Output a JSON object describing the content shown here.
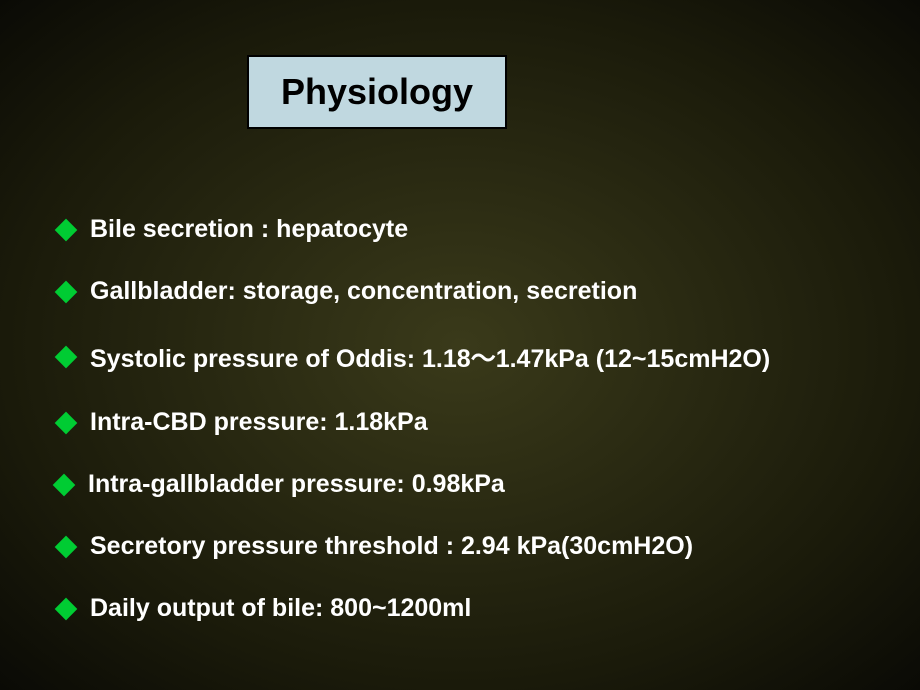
{
  "title": {
    "text": "Physiology",
    "background_color": "#c0d8e0",
    "border_color": "#000000",
    "text_color": "#000000",
    "fontsize": 36,
    "fontweight": "bold"
  },
  "bullets": {
    "marker_color": "#00cc33",
    "marker_shape": "diamond",
    "text_color": "#ffffff",
    "fontsize": 25,
    "fontweight": "bold",
    "items": [
      "Bile secretion : hepatocyte",
      "Gallbladder: storage, concentration, secretion",
      "Systolic pressure of Oddis: 1.18～1.47kPa (12~15cmH2O)",
      "Intra-CBD pressure: 1.18kPa",
      "Intra-gallbladder pressure: 0.98kPa",
      "Secretory pressure threshold : 2.94 kPa(30cmH2O)",
      "Daily output of bile: 800~1200ml"
    ]
  },
  "background": {
    "gradient_center": "#3a3a1a",
    "gradient_mid": "#1a1a0a",
    "gradient_edge": "#0a0a05"
  }
}
